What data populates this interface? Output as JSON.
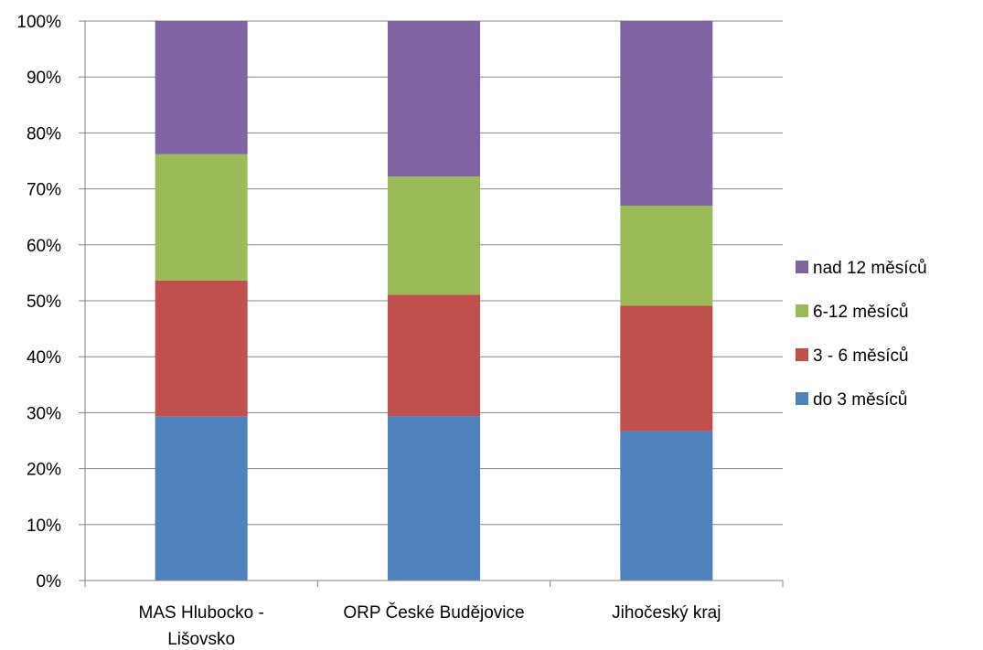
{
  "chart_data": {
    "type": "bar",
    "stacked": true,
    "percent_stacked": true,
    "title": "",
    "xlabel": "",
    "ylabel": "",
    "ylim": [
      0,
      100
    ],
    "y_ticks": [
      "0%",
      "10%",
      "20%",
      "30%",
      "40%",
      "50%",
      "60%",
      "70%",
      "80%",
      "90%",
      "100%"
    ],
    "grid": true,
    "legend_position": "right",
    "categories": [
      [
        "MAS Hlubocko -",
        "Lišovsko"
      ],
      [
        "ORP České Budějovice"
      ],
      [
        "Jihočeský kraj"
      ]
    ],
    "series": [
      {
        "name": "do 3 měsíců",
        "color": "#4f81bd",
        "values": [
          29.3,
          29.4,
          26.7
        ]
      },
      {
        "name": "3 - 6 měsíců",
        "color": "#c0504d",
        "values": [
          24.3,
          21.7,
          22.4
        ]
      },
      {
        "name": "6-12 měsíců",
        "color": "#9bbb59",
        "values": [
          22.6,
          21.1,
          17.9
        ]
      },
      {
        "name": "nad 12 měsíců",
        "color": "#8064a2",
        "values": [
          23.8,
          27.8,
          33.0
        ]
      }
    ]
  }
}
